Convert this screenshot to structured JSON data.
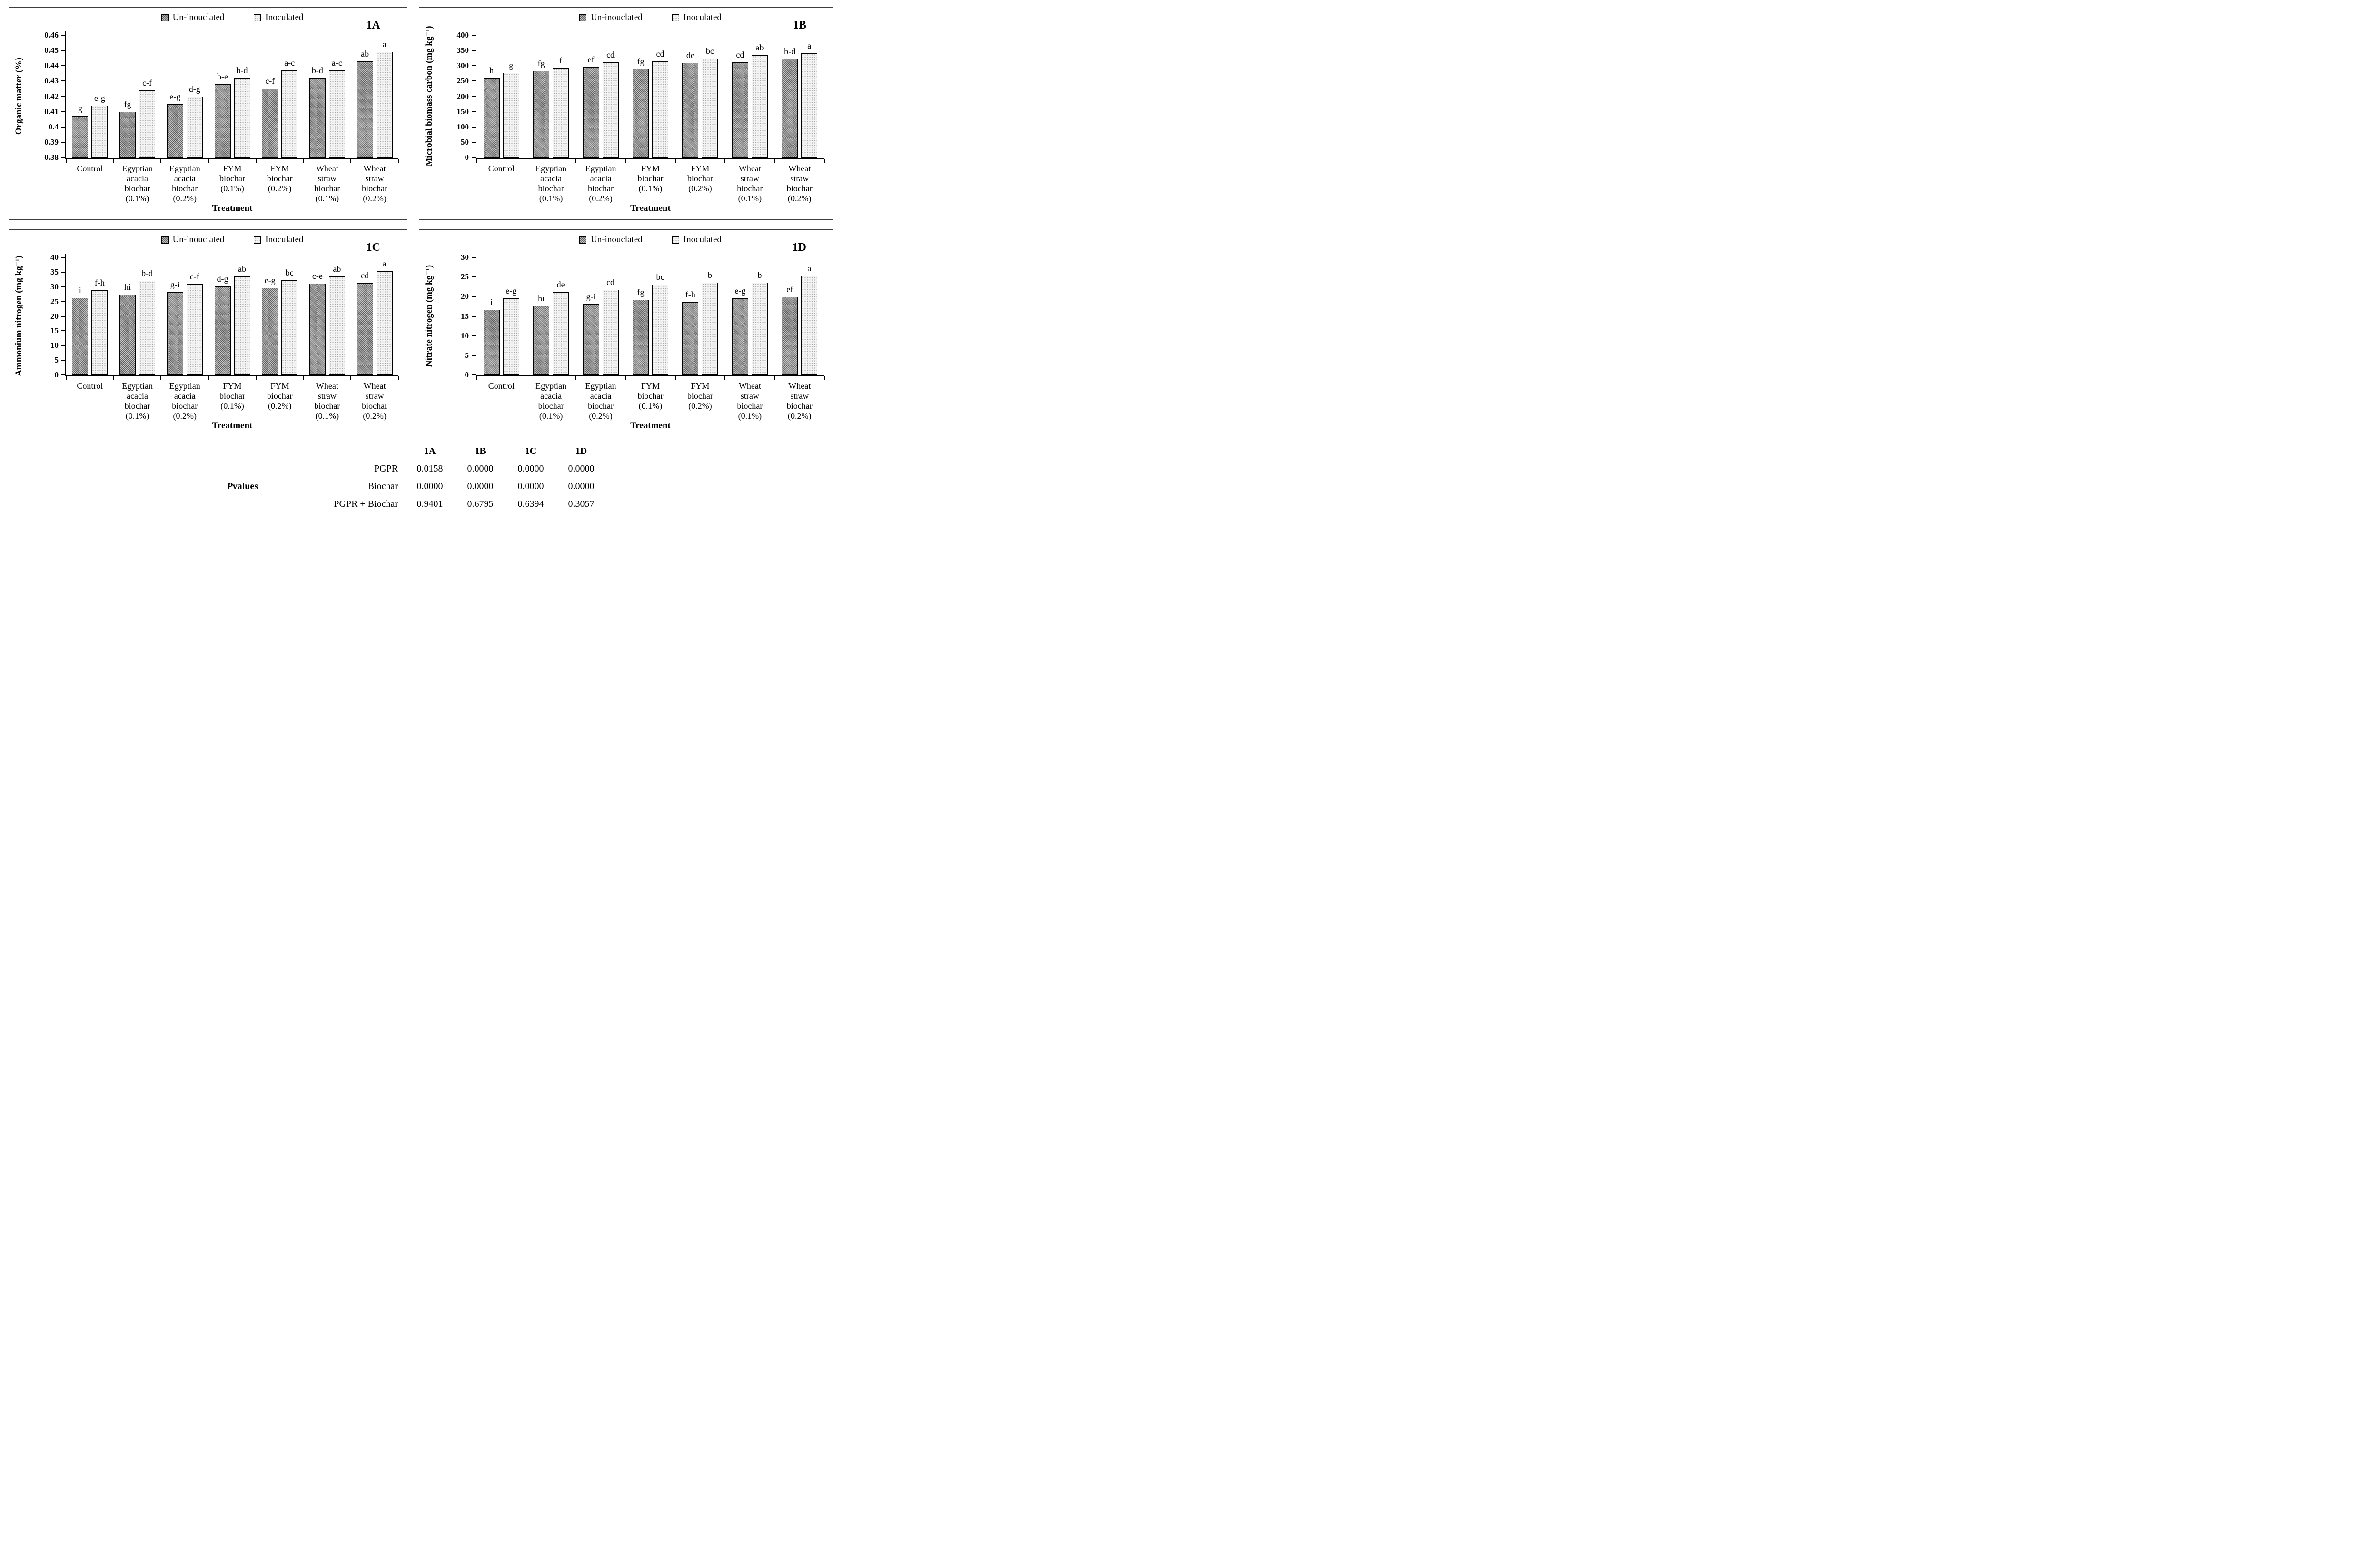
{
  "colors": {
    "uninoculated_bar": "#8f8f8f",
    "inoculated_bar": "#f4f4f4",
    "axis": "#000000",
    "panel_border": "#3d3d3d",
    "background": "#ffffff"
  },
  "chart_data": [
    {
      "type": "bar",
      "panel_label": "1A",
      "title": "",
      "ylabel": "Organic matter (%)",
      "xlabel": "Treatment",
      "ylim": [
        0.38,
        0.46
      ],
      "ytick_values": [
        0.38,
        0.39,
        0.4,
        0.41,
        0.42,
        0.43,
        0.44,
        0.45,
        0.46
      ],
      "ytick_labels": [
        "0.38",
        "0.39",
        "0.4",
        "0.41",
        "0.42",
        "0.43",
        "0.44",
        "0.45",
        "0.46"
      ],
      "grid": false,
      "legend_position": "top-center",
      "categories": [
        "Control",
        "Egyptian\nacacia\nbiochar\n(0.1%)",
        "Egyptian\nacacia\nbiochar\n(0.2%)",
        "FYM\nbiochar\n(0.1%)",
        "FYM\nbiochar\n(0.2%)",
        "Wheat\nstraw\nbiochar\n(0.1%)",
        "Wheat\nstraw\nbiochar\n(0.2%)"
      ],
      "series": [
        {
          "name": "Un-inouclated",
          "values": [
            0.407,
            0.41,
            0.415,
            0.428,
            0.425,
            0.432,
            0.443
          ],
          "letters": [
            "g",
            "fg",
            "e-g",
            "b-e",
            "c-f",
            "b-d",
            "ab"
          ]
        },
        {
          "name": "Inoculated",
          "values": [
            0.414,
            0.424,
            0.42,
            0.432,
            0.437,
            0.437,
            0.449
          ],
          "letters": [
            "e-g",
            "c-f",
            "d-g",
            "b-d",
            "a-c",
            "a-c",
            "a"
          ]
        }
      ]
    },
    {
      "type": "bar",
      "panel_label": "1B",
      "title": "",
      "ylabel": "Microbial biomass carbon (mg kg⁻¹)",
      "xlabel": "Treatment",
      "ylim": [
        0,
        400
      ],
      "ytick_values": [
        0,
        50,
        100,
        150,
        200,
        250,
        300,
        350,
        400
      ],
      "ytick_labels": [
        "0",
        "50",
        "100",
        "150",
        "200",
        "250",
        "300",
        "350",
        "400"
      ],
      "grid": false,
      "legend_position": "top-center",
      "categories": [
        "Control",
        "Egyptian\nacacia\nbiochar\n(0.1%)",
        "Egyptian\nacacia\nbiochar\n(0.2%)",
        "FYM\nbiochar\n(0.1%)",
        "FYM\nbiochar\n(0.2%)",
        "Wheat\nstraw\nbiochar\n(0.1%)",
        "Wheat\nstraw\nbiochar\n(0.2%)"
      ],
      "series": [
        {
          "name": "Un-inouclated",
          "values": [
            260,
            283,
            295,
            289,
            309,
            311,
            322
          ],
          "letters": [
            "h",
            "fg",
            "ef",
            "fg",
            "de",
            "cd",
            "b-d"
          ]
        },
        {
          "name": "Inoculated",
          "values": [
            277,
            293,
            312,
            315,
            324,
            334,
            341
          ],
          "letters": [
            "g",
            "f",
            "cd",
            "cd",
            "bc",
            "ab",
            "a"
          ]
        }
      ]
    },
    {
      "type": "bar",
      "panel_label": "1C",
      "title": "",
      "ylabel": "Ammonium nitrogen  (mg kg⁻¹)",
      "xlabel": "Treatment",
      "ylim": [
        0,
        40
      ],
      "ytick_values": [
        0,
        5,
        10,
        15,
        20,
        25,
        30,
        35,
        40
      ],
      "ytick_labels": [
        "0",
        "5",
        "10",
        "15",
        "20",
        "25",
        "30",
        "35",
        "40"
      ],
      "grid": false,
      "legend_position": "top-center",
      "categories": [
        "Control",
        "Egyptian\nacacia\nbiochar\n(0.1%)",
        "Egyptian\nacacia\nbiochar\n(0.2%)",
        "FYM\nbiochar\n(0.1%)",
        "FYM\nbiochar\n(0.2%)",
        "Wheat\nstraw\nbiochar\n(0.1%)",
        "Wheat\nstraw\nbiochar\n(0.2%)"
      ],
      "series": [
        {
          "name": "Un-inouclated",
          "values": [
            26.3,
            27.3,
            28.1,
            30.1,
            29.6,
            31.1,
            31.2
          ],
          "letters": [
            "i",
            "hi",
            "g-i",
            "d-g",
            "e-g",
            "c-e",
            "cd"
          ]
        },
        {
          "name": "Inoculated",
          "values": [
            28.8,
            32.0,
            30.9,
            33.5,
            32.3,
            33.6,
            35.3
          ],
          "letters": [
            "f-h",
            "b-d",
            "c-f",
            "ab",
            "bc",
            "ab",
            "a"
          ]
        }
      ]
    },
    {
      "type": "bar",
      "panel_label": "1D",
      "title": "",
      "ylabel": "Nitrate nitrogen  (mg kg⁻¹)",
      "xlabel": "Treatment",
      "ylim": [
        0,
        30
      ],
      "ytick_values": [
        0,
        5,
        10,
        15,
        20,
        25,
        30
      ],
      "ytick_labels": [
        "0",
        "5",
        "10",
        "15",
        "20",
        "25",
        "30"
      ],
      "grid": false,
      "legend_position": "top-center",
      "categories": [
        "Control",
        "Egyptian\nacacia\nbiochar\n(0.1%)",
        "Egyptian\nacacia\nbiochar\n(0.2%)",
        "FYM\nbiochar\n(0.1%)",
        "FYM\nbiochar\n(0.2%)",
        "Wheat\nstraw\nbiochar\n(0.1%)",
        "Wheat\nstraw\nbiochar\n(0.2%)"
      ],
      "series": [
        {
          "name": "Un-inouclated",
          "values": [
            16.6,
            17.6,
            18.1,
            19.2,
            18.6,
            19.5,
            19.9
          ],
          "letters": [
            "i",
            "hi",
            "g-i",
            "fg",
            "f-h",
            "e-g",
            "ef"
          ]
        },
        {
          "name": "Inoculated",
          "values": [
            19.5,
            21.1,
            21.7,
            23.1,
            23.6,
            23.6,
            25.3
          ],
          "letters": [
            "e-g",
            "de",
            "cd",
            "bc",
            "b",
            "b",
            "a"
          ]
        }
      ]
    }
  ],
  "pvalues": {
    "title_p": "P",
    "title_rest": " values",
    "col_headers": [
      "1A",
      "1B",
      "1C",
      "1D"
    ],
    "rows": [
      {
        "label": "PGPR",
        "values": [
          "0.0158",
          "0.0000",
          "0.0000",
          "0.0000"
        ]
      },
      {
        "label": "Biochar",
        "values": [
          "0.0000",
          "0.0000",
          "0.0000",
          "0.0000"
        ]
      },
      {
        "label": "PGPR + Biochar",
        "values": [
          "0.9401",
          "0.6795",
          "0.6394",
          "0.3057"
        ]
      }
    ]
  }
}
